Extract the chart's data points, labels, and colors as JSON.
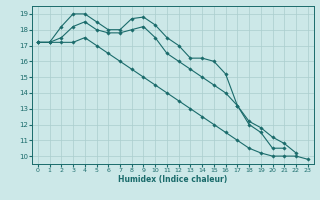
{
  "xlabel": "Humidex (Indice chaleur)",
  "bg_color": "#cce8e8",
  "grid_color": "#aacece",
  "line_color": "#1a6b6b",
  "xlim": [
    -0.5,
    23.5
  ],
  "ylim": [
    9.5,
    19.5
  ],
  "xticks": [
    0,
    1,
    2,
    3,
    4,
    5,
    6,
    7,
    8,
    9,
    10,
    11,
    12,
    13,
    14,
    15,
    16,
    17,
    18,
    19,
    20,
    21,
    22,
    23
  ],
  "yticks": [
    10,
    11,
    12,
    13,
    14,
    15,
    16,
    17,
    18,
    19
  ],
  "series1_x": [
    0,
    1,
    2,
    3,
    4,
    5,
    6,
    7,
    8,
    9,
    10,
    11,
    12,
    13,
    14,
    15,
    16,
    17,
    18,
    19,
    20,
    21
  ],
  "series1_y": [
    17.2,
    17.2,
    18.2,
    19.0,
    19.0,
    18.5,
    18.0,
    18.0,
    18.7,
    18.8,
    18.3,
    17.5,
    17.0,
    16.2,
    16.2,
    16.0,
    15.2,
    13.2,
    12.0,
    11.5,
    10.5,
    10.5
  ],
  "series2_x": [
    0,
    1,
    2,
    3,
    4,
    5,
    6,
    7,
    8,
    9,
    10,
    11,
    12,
    13,
    14,
    15,
    16,
    17,
    18,
    19,
    20,
    21,
    22
  ],
  "series2_y": [
    17.2,
    17.2,
    17.5,
    18.2,
    18.5,
    18.0,
    17.8,
    17.8,
    18.0,
    18.2,
    17.5,
    16.5,
    16.0,
    15.5,
    15.0,
    14.5,
    14.0,
    13.2,
    12.2,
    11.8,
    11.2,
    10.8,
    10.2
  ],
  "series3_x": [
    0,
    1,
    2,
    3,
    4,
    5,
    6,
    7,
    8,
    9,
    10,
    11,
    12,
    13,
    14,
    15,
    16,
    17,
    18,
    19,
    20,
    21,
    22,
    23
  ],
  "series3_y": [
    17.2,
    17.2,
    17.2,
    17.2,
    17.5,
    17.0,
    16.5,
    16.0,
    15.5,
    15.0,
    14.5,
    14.0,
    13.5,
    13.0,
    12.5,
    12.0,
    11.5,
    11.0,
    10.5,
    10.2,
    10.0,
    10.0,
    10.0,
    9.8
  ]
}
